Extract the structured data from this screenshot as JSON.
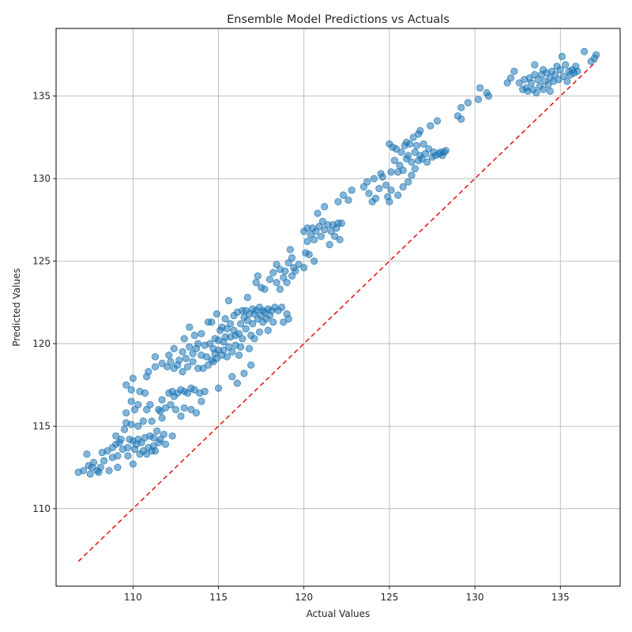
{
  "chart_data": {
    "type": "scatter",
    "title": "Ensemble Model Predictions vs Actuals",
    "xlabel": "Actual Values",
    "ylabel": "Predicted Values",
    "xlim": [
      105.5,
      138.5
    ],
    "ylim": [
      105.3,
      139.1
    ],
    "xticks": [
      110,
      115,
      120,
      125,
      130,
      135
    ],
    "yticks": [
      110,
      115,
      120,
      125,
      130,
      135
    ],
    "grid": true,
    "point_color": "#1f77b4",
    "point_alpha": 0.55,
    "reference_line": {
      "style": "dashed",
      "color": "#e41a1c",
      "from": [
        106.8,
        106.8
      ],
      "to": [
        137.1,
        137.1
      ]
    },
    "points": [
      [
        106.8,
        112.2
      ],
      [
        107.1,
        112.3
      ],
      [
        107.3,
        113.3
      ],
      [
        107.4,
        112.6
      ],
      [
        107.5,
        112.1
      ],
      [
        107.6,
        112.5
      ],
      [
        107.7,
        112.8
      ],
      [
        107.9,
        112.3
      ],
      [
        108.0,
        112.2
      ],
      [
        108.1,
        112.5
      ],
      [
        108.2,
        113.4
      ],
      [
        108.3,
        112.9
      ],
      [
        108.5,
        113.5
      ],
      [
        108.6,
        112.3
      ],
      [
        108.8,
        113.7
      ],
      [
        108.8,
        113.1
      ],
      [
        109.0,
        114.4
      ],
      [
        109.0,
        113.9
      ],
      [
        109.1,
        113.2
      ],
      [
        109.1,
        112.5
      ],
      [
        109.2,
        114.0
      ],
      [
        109.3,
        114.2
      ],
      [
        109.4,
        113.6
      ],
      [
        109.5,
        114.8
      ],
      [
        109.6,
        115.2
      ],
      [
        109.6,
        115.8
      ],
      [
        109.6,
        117.5
      ],
      [
        109.7,
        113.2
      ],
      [
        109.7,
        113.7
      ],
      [
        109.8,
        114.2
      ],
      [
        109.9,
        116.5
      ],
      [
        109.9,
        117.2
      ],
      [
        109.9,
        115.1
      ],
      [
        110.0,
        114.1
      ],
      [
        110.0,
        112.7
      ],
      [
        110.0,
        117.9
      ],
      [
        110.1,
        113.6
      ],
      [
        110.1,
        116.0
      ],
      [
        110.2,
        113.9
      ],
      [
        110.3,
        115.0
      ],
      [
        110.3,
        116.3
      ],
      [
        110.3,
        114.2
      ],
      [
        110.4,
        117.1
      ],
      [
        110.4,
        113.3
      ],
      [
        110.5,
        114.0
      ],
      [
        110.6,
        113.5
      ],
      [
        110.6,
        115.3
      ],
      [
        110.7,
        114.3
      ],
      [
        110.7,
        117.0
      ],
      [
        110.8,
        118.0
      ],
      [
        110.8,
        113.3
      ],
      [
        110.8,
        116.0
      ],
      [
        110.9,
        113.7
      ],
      [
        110.9,
        118.3
      ],
      [
        111.0,
        114.4
      ],
      [
        111.0,
        116.3
      ],
      [
        111.1,
        113.5
      ],
      [
        111.1,
        115.3
      ],
      [
        111.2,
        114.3
      ],
      [
        111.2,
        113.8
      ],
      [
        111.3,
        118.6
      ],
      [
        111.3,
        119.2
      ],
      [
        111.3,
        113.5
      ],
      [
        111.4,
        114.7
      ],
      [
        111.5,
        114.0
      ],
      [
        111.5,
        116.0
      ],
      [
        111.6,
        115.9
      ],
      [
        111.6,
        114.2
      ],
      [
        111.7,
        115.5
      ],
      [
        111.7,
        118.8
      ],
      [
        111.7,
        116.6
      ],
      [
        111.8,
        114.5
      ],
      [
        111.9,
        116.1
      ],
      [
        111.9,
        113.9
      ],
      [
        112.0,
        118.6
      ],
      [
        112.1,
        119.3
      ],
      [
        112.1,
        117.0
      ],
      [
        112.2,
        118.9
      ],
      [
        112.2,
        116.3
      ],
      [
        112.3,
        117.1
      ],
      [
        112.3,
        114.4
      ],
      [
        112.4,
        118.5
      ],
      [
        112.4,
        119.7
      ],
      [
        112.4,
        116.8
      ],
      [
        112.5,
        116.0
      ],
      [
        112.6,
        117.0
      ],
      [
        112.6,
        118.7
      ],
      [
        112.7,
        119.0
      ],
      [
        112.8,
        117.2
      ],
      [
        112.8,
        115.6
      ],
      [
        112.9,
        119.5
      ],
      [
        112.9,
        118.3
      ],
      [
        113.0,
        116.1
      ],
      [
        113.0,
        120.3
      ],
      [
        113.0,
        117.1
      ],
      [
        113.1,
        119.1
      ],
      [
        113.2,
        118.6
      ],
      [
        113.2,
        117.0
      ],
      [
        113.3,
        121.0
      ],
      [
        113.3,
        119.8
      ],
      [
        113.4,
        117.3
      ],
      [
        113.4,
        116.0
      ],
      [
        113.5,
        119.4
      ],
      [
        113.5,
        118.9
      ],
      [
        113.6,
        120.5
      ],
      [
        113.6,
        117.2
      ],
      [
        113.7,
        119.7
      ],
      [
        113.7,
        115.8
      ],
      [
        113.8,
        118.5
      ],
      [
        113.8,
        120.0
      ],
      [
        113.9,
        117.0
      ],
      [
        114.0,
        119.3
      ],
      [
        114.0,
        120.6
      ],
      [
        114.0,
        116.5
      ],
      [
        114.1,
        118.5
      ],
      [
        114.2,
        119.9
      ],
      [
        114.2,
        117.1
      ],
      [
        114.3,
        119.2
      ],
      [
        114.4,
        121.3
      ],
      [
        114.4,
        118.7
      ],
      [
        114.5,
        120.0
      ],
      [
        114.6,
        119.0
      ],
      [
        114.6,
        121.3
      ],
      [
        114.7,
        119.7
      ],
      [
        114.7,
        118.9
      ],
      [
        114.8,
        120.3
      ],
      [
        114.8,
        119.4
      ],
      [
        114.9,
        119.1
      ],
      [
        114.9,
        121.8
      ],
      [
        115.0,
        120.2
      ],
      [
        115.0,
        119.6
      ],
      [
        115.0,
        117.3
      ],
      [
        115.1,
        120.8
      ],
      [
        115.2,
        119.3
      ],
      [
        115.2,
        121.0
      ],
      [
        115.3,
        120.1
      ],
      [
        115.3,
        119.6
      ],
      [
        115.4,
        121.5
      ],
      [
        115.4,
        120.4
      ],
      [
        115.5,
        119.2
      ],
      [
        115.5,
        120.9
      ],
      [
        115.6,
        122.6
      ],
      [
        115.6,
        119.8
      ],
      [
        115.7,
        121.2
      ],
      [
        115.7,
        120.4
      ],
      [
        115.8,
        119.5
      ],
      [
        115.8,
        118.0
      ],
      [
        115.9,
        120.8
      ],
      [
        115.9,
        121.7
      ],
      [
        116.0,
        119.9
      ],
      [
        116.0,
        120.5
      ],
      [
        116.1,
        121.9
      ],
      [
        116.1,
        117.6
      ],
      [
        116.2,
        119.3
      ],
      [
        116.2,
        120.6
      ],
      [
        116.3,
        121.2
      ],
      [
        116.3,
        119.8
      ],
      [
        116.4,
        122.0
      ],
      [
        116.4,
        120.3
      ],
      [
        116.5,
        121.6
      ],
      [
        116.5,
        118.2
      ],
      [
        116.6,
        120.9
      ],
      [
        116.6,
        122.0
      ],
      [
        116.7,
        121.4
      ],
      [
        116.7,
        122.8
      ],
      [
        116.8,
        119.7
      ],
      [
        116.8,
        121.8
      ],
      [
        116.9,
        120.5
      ],
      [
        116.9,
        118.7
      ],
      [
        117.0,
        122.1
      ],
      [
        117.0,
        121.2
      ],
      [
        117.1,
        121.8
      ],
      [
        117.1,
        120.3
      ],
      [
        117.2,
        122.0
      ],
      [
        117.2,
        123.7
      ],
      [
        117.3,
        121.5
      ],
      [
        117.3,
        124.1
      ],
      [
        117.4,
        120.7
      ],
      [
        117.4,
        122.2
      ],
      [
        117.5,
        121.7
      ],
      [
        117.5,
        123.4
      ],
      [
        117.6,
        121.3
      ],
      [
        117.6,
        122.0
      ],
      [
        117.7,
        121.9
      ],
      [
        117.7,
        123.3
      ],
      [
        117.8,
        121.5
      ],
      [
        117.9,
        122.1
      ],
      [
        117.9,
        120.8
      ],
      [
        118.0,
        121.7
      ],
      [
        118.0,
        123.9
      ],
      [
        118.1,
        122.0
      ],
      [
        118.2,
        124.3
      ],
      [
        118.2,
        121.3
      ],
      [
        118.3,
        122.2
      ],
      [
        118.4,
        123.7
      ],
      [
        118.4,
        124.8
      ],
      [
        118.5,
        122.0
      ],
      [
        118.6,
        124.5
      ],
      [
        118.6,
        123.3
      ],
      [
        118.7,
        122.2
      ],
      [
        118.8,
        124.0
      ],
      [
        118.8,
        121.3
      ],
      [
        118.9,
        124.4
      ],
      [
        119.0,
        123.7
      ],
      [
        119.0,
        121.8
      ],
      [
        119.1,
        124.9
      ],
      [
        119.1,
        121.5
      ],
      [
        119.2,
        125.7
      ],
      [
        119.3,
        124.1
      ],
      [
        119.3,
        125.2
      ],
      [
        119.4,
        124.6
      ],
      [
        119.5,
        124.4
      ],
      [
        119.7,
        124.8
      ],
      [
        120.0,
        124.6
      ],
      [
        120.0,
        126.8
      ],
      [
        120.1,
        125.5
      ],
      [
        120.2,
        126.2
      ],
      [
        120.2,
        127.0
      ],
      [
        120.3,
        125.4
      ],
      [
        120.4,
        126.6
      ],
      [
        120.5,
        127.0
      ],
      [
        120.6,
        126.3
      ],
      [
        120.6,
        125.0
      ],
      [
        120.7,
        126.8
      ],
      [
        120.8,
        127.9
      ],
      [
        120.9,
        127.1
      ],
      [
        121.0,
        126.5
      ],
      [
        121.1,
        127.4
      ],
      [
        121.2,
        128.3
      ],
      [
        121.2,
        126.9
      ],
      [
        121.4,
        127.2
      ],
      [
        121.5,
        126.0
      ],
      [
        121.6,
        126.8
      ],
      [
        121.7,
        127.2
      ],
      [
        121.8,
        126.5
      ],
      [
        121.9,
        127.0
      ],
      [
        122.0,
        127.3
      ],
      [
        122.0,
        128.6
      ],
      [
        122.1,
        126.3
      ],
      [
        122.2,
        127.3
      ],
      [
        122.3,
        129.0
      ],
      [
        122.6,
        128.7
      ],
      [
        122.8,
        129.3
      ],
      [
        123.5,
        129.5
      ],
      [
        123.7,
        129.8
      ],
      [
        123.8,
        129.1
      ],
      [
        124.0,
        128.6
      ],
      [
        124.1,
        130.0
      ],
      [
        124.2,
        128.8
      ],
      [
        124.4,
        129.4
      ],
      [
        124.5,
        130.3
      ],
      [
        124.6,
        130.1
      ],
      [
        124.8,
        129.6
      ],
      [
        124.9,
        128.9
      ],
      [
        125.0,
        132.1
      ],
      [
        125.0,
        128.6
      ],
      [
        125.1,
        129.3
      ],
      [
        125.1,
        130.4
      ],
      [
        125.2,
        131.9
      ],
      [
        125.3,
        131.1
      ],
      [
        125.4,
        131.8
      ],
      [
        125.5,
        130.4
      ],
      [
        125.5,
        129.0
      ],
      [
        125.6,
        130.8
      ],
      [
        125.7,
        131.6
      ],
      [
        125.8,
        129.5
      ],
      [
        125.8,
        130.5
      ],
      [
        125.9,
        132.0
      ],
      [
        126.0,
        131.2
      ],
      [
        126.0,
        132.2
      ],
      [
        126.1,
        129.8
      ],
      [
        126.1,
        131.4
      ],
      [
        126.2,
        132.1
      ],
      [
        126.3,
        130.2
      ],
      [
        126.3,
        131.0
      ],
      [
        126.4,
        132.5
      ],
      [
        126.5,
        131.6
      ],
      [
        126.5,
        130.6
      ],
      [
        126.6,
        132.0
      ],
      [
        126.7,
        131.1
      ],
      [
        126.7,
        132.7
      ],
      [
        126.8,
        131.4
      ],
      [
        126.8,
        132.9
      ],
      [
        126.9,
        131.2
      ],
      [
        127.0,
        132.1
      ],
      [
        127.1,
        131.5
      ],
      [
        127.2,
        131.0
      ],
      [
        127.3,
        131.8
      ],
      [
        127.4,
        133.2
      ],
      [
        127.5,
        131.3
      ],
      [
        127.6,
        131.6
      ],
      [
        127.7,
        131.4
      ],
      [
        127.8,
        133.5
      ],
      [
        127.9,
        131.5
      ],
      [
        128.0,
        131.6
      ],
      [
        128.1,
        131.4
      ],
      [
        128.2,
        131.6
      ],
      [
        128.3,
        131.7
      ],
      [
        129.0,
        133.8
      ],
      [
        129.2,
        134.3
      ],
      [
        129.2,
        133.6
      ],
      [
        129.6,
        134.6
      ],
      [
        130.2,
        134.8
      ],
      [
        130.3,
        135.5
      ],
      [
        130.7,
        135.2
      ],
      [
        130.8,
        135.0
      ],
      [
        131.9,
        135.8
      ],
      [
        132.1,
        136.1
      ],
      [
        132.3,
        136.5
      ],
      [
        132.6,
        135.8
      ],
      [
        132.8,
        135.4
      ],
      [
        132.9,
        136.0
      ],
      [
        133.0,
        135.5
      ],
      [
        133.1,
        135.3
      ],
      [
        133.2,
        136.1
      ],
      [
        133.3,
        135.8
      ],
      [
        133.4,
        135.4
      ],
      [
        133.5,
        136.3
      ],
      [
        133.5,
        136.9
      ],
      [
        133.6,
        135.2
      ],
      [
        133.7,
        136.0
      ],
      [
        133.8,
        135.6
      ],
      [
        133.9,
        136.3
      ],
      [
        134.0,
        135.4
      ],
      [
        134.0,
        136.6
      ],
      [
        134.1,
        135.9
      ],
      [
        134.2,
        136.4
      ],
      [
        134.3,
        135.7
      ],
      [
        134.4,
        136.1
      ],
      [
        134.4,
        135.3
      ],
      [
        134.5,
        136.5
      ],
      [
        134.6,
        135.9
      ],
      [
        134.7,
        136.3
      ],
      [
        134.8,
        136.8
      ],
      [
        134.9,
        136.0
      ],
      [
        135.0,
        136.6
      ],
      [
        135.1,
        137.4
      ],
      [
        135.2,
        136.2
      ],
      [
        135.3,
        136.9
      ],
      [
        135.4,
        135.9
      ],
      [
        135.5,
        136.5
      ],
      [
        135.6,
        136.3
      ],
      [
        135.7,
        136.6
      ],
      [
        135.8,
        136.4
      ],
      [
        135.9,
        136.8
      ],
      [
        136.0,
        136.5
      ],
      [
        136.4,
        137.7
      ],
      [
        136.8,
        137.1
      ],
      [
        137.0,
        137.3
      ],
      [
        137.1,
        137.5
      ]
    ]
  }
}
